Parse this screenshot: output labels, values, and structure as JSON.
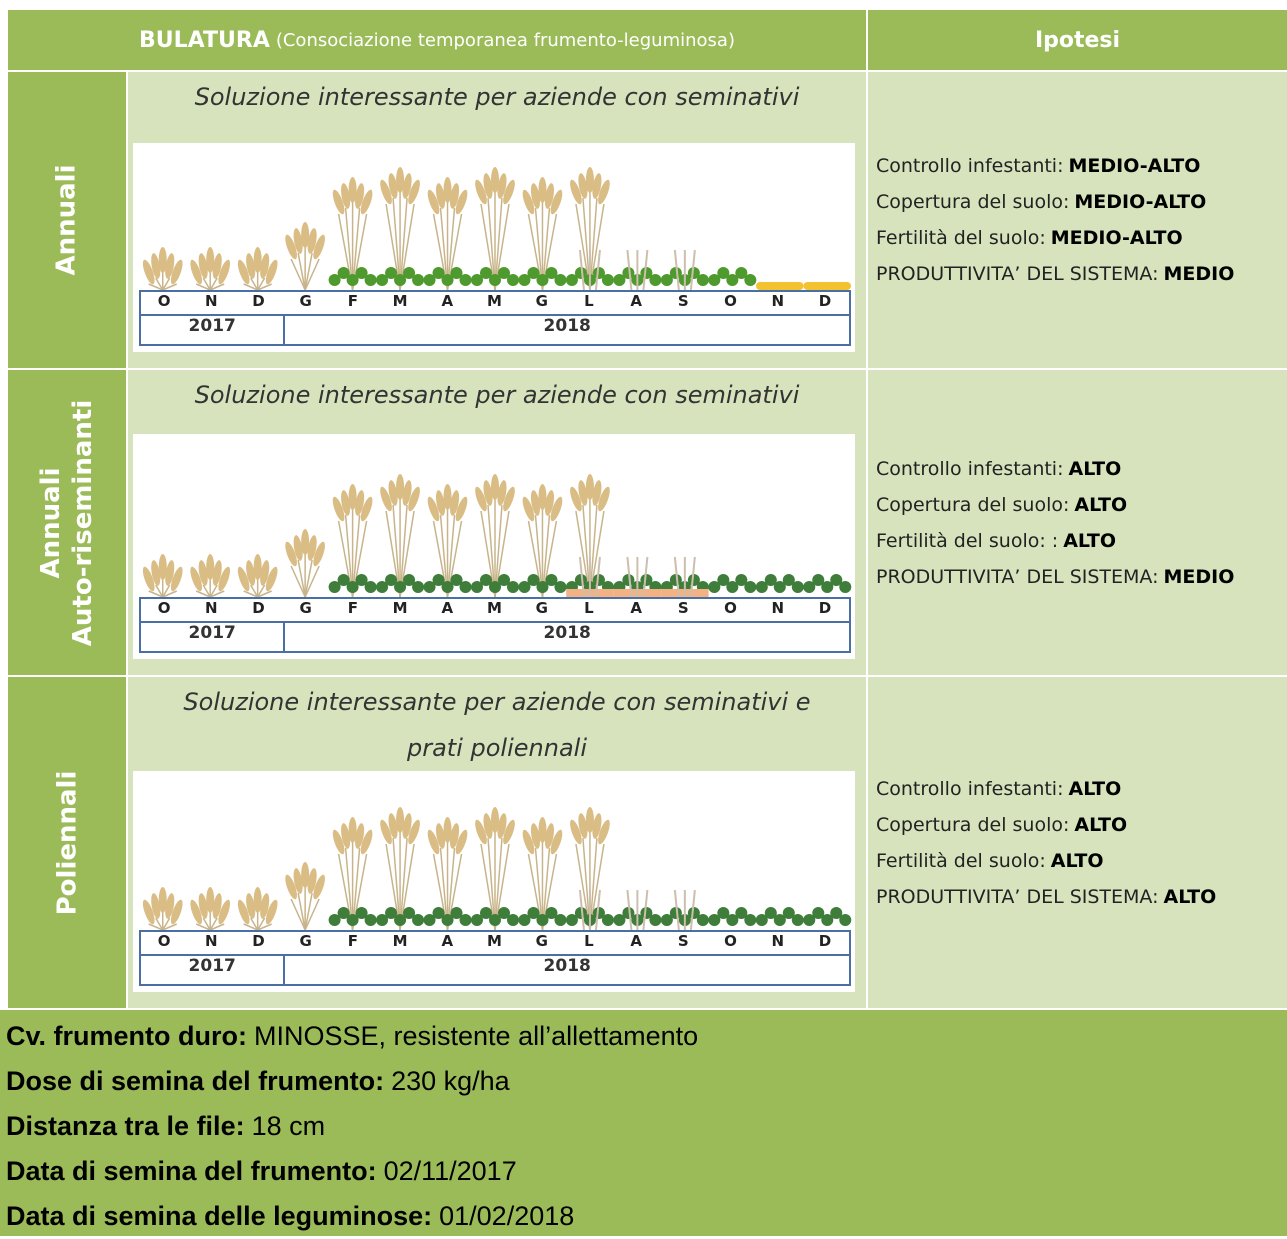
{
  "header": {
    "title_bold": "BULATURA",
    "title_rest": "(Consociazione temporanea frumento-leguminosa)",
    "right": "Ipotesi"
  },
  "rows": [
    {
      "label": [
        "Annuali"
      ],
      "note": [
        "Soluzione interessante per aziende con seminativi"
      ],
      "months": [
        "O",
        "N",
        "D",
        "G",
        "F",
        "M",
        "A",
        "M",
        "G",
        "L",
        "A",
        "S",
        "O",
        "N",
        "D"
      ],
      "years": [
        "2017",
        "2018"
      ],
      "hypotheses": [
        {
          "label": "Controllo infestanti:",
          "value": "MEDIO-ALTO"
        },
        {
          "label": "Copertura del suolo:",
          "value": "MEDIO-ALTO"
        },
        {
          "label": "Fertilità del suolo:",
          "value": "MEDIO-ALTO"
        },
        {
          "label": "PRODUTTIVITA’ DEL SISTEMA:",
          "value": "MEDIO"
        }
      ]
    },
    {
      "label": [
        "Annuali",
        "Auto-riseminanti"
      ],
      "note": [
        "Soluzione interessante per aziende con seminativi"
      ],
      "months": [
        "O",
        "N",
        "D",
        "G",
        "F",
        "M",
        "A",
        "M",
        "G",
        "L",
        "A",
        "S",
        "O",
        "N",
        "D"
      ],
      "years": [
        "2017",
        "2018"
      ],
      "hypotheses": [
        {
          "label": "Controllo infestanti:",
          "value": "ALTO"
        },
        {
          "label": "Copertura del suolo:",
          "value": "ALTO"
        },
        {
          "label": "Fertilità del suolo: :",
          "value": "ALTO"
        },
        {
          "label": "PRODUTTIVITA’ DEL SISTEMA:",
          "value": "MEDIO"
        }
      ]
    },
    {
      "label": [
        "Poliennali"
      ],
      "note": [
        "Soluzione interessante per aziende con seminativi e",
        "prati poliennali"
      ],
      "months": [
        "O",
        "N",
        "D",
        "G",
        "F",
        "M",
        "A",
        "M",
        "G",
        "L",
        "A",
        "S",
        "O",
        "N",
        "D"
      ],
      "years": [
        "2017",
        "2018"
      ],
      "hypotheses": [
        {
          "label": "Controllo infestanti:",
          "value": "ALTO"
        },
        {
          "label": "Copertura del suolo:",
          "value": "ALTO"
        },
        {
          "label": "Fertilità del suolo:",
          "value": "ALTO"
        },
        {
          "label": "PRODUTTIVITA’ DEL SISTEMA:",
          "value": "ALTO"
        }
      ]
    }
  ],
  "footer": [
    {
      "label": "Cv. frumento duro:",
      "value": "MINOSSE, resistente all’allettamento"
    },
    {
      "label": "Dose di semina del frumento:",
      "value": "230 kg/ha"
    },
    {
      "label": "Distanza tra le file:",
      "value": "18 cm"
    },
    {
      "label": "Data di semina del frumento:",
      "value": "02/11/2017"
    },
    {
      "label": "Data di semina delle leguminose:",
      "value": "01/02/2018"
    }
  ]
}
